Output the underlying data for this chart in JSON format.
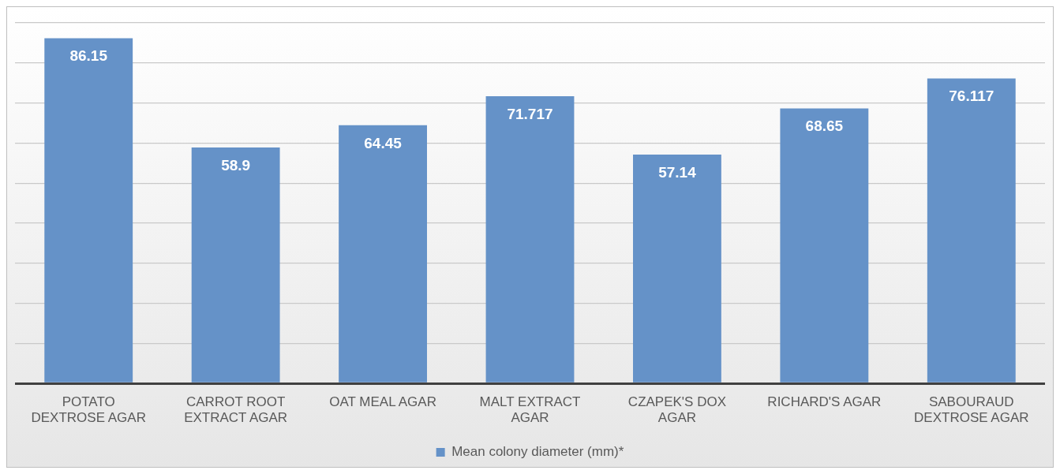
{
  "chart_data": {
    "type": "bar",
    "categories": [
      "POTATO DEXTROSE AGAR",
      "CARROT ROOT EXTRACT AGAR",
      "OAT MEAL AGAR",
      "MALT EXTRACT AGAR",
      "CZAPEK'S DOX AGAR",
      "RICHARD'S AGAR",
      "SABOURAUD DEXTROSE AGAR"
    ],
    "series": [
      {
        "name": "Mean colony diameter (mm)*",
        "color": "#6592c8",
        "values": [
          86.15,
          58.9,
          64.45,
          71.717,
          57.14,
          68.65,
          76.117
        ]
      }
    ],
    "ylim": [
      0,
      90
    ],
    "yticks": [
      {
        "value": 0,
        "label": null
      },
      {
        "value": 10,
        "label": null
      },
      {
        "value": 20,
        "label": null
      },
      {
        "value": 30,
        "label": null
      },
      {
        "value": 40,
        "label": null
      },
      {
        "value": 50,
        "label": null
      },
      {
        "value": 60,
        "label": null
      },
      {
        "value": 70,
        "label": null
      },
      {
        "value": 80,
        "label": null
      },
      {
        "value": 90,
        "label": null
      }
    ],
    "tick_labels": "x",
    "grid": "y",
    "legend": "bottom",
    "data_labels": true
  }
}
